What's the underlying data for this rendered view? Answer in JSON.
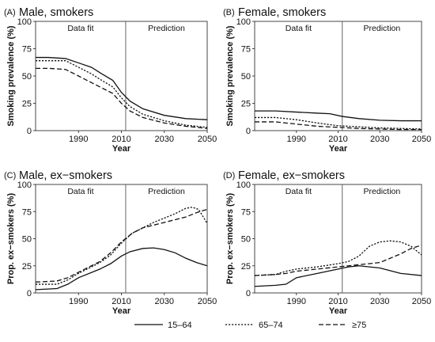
{
  "figure": {
    "legend": [
      {
        "label": "15–64",
        "dash": "solid"
      },
      {
        "label": "65–74",
        "dash": "dotted"
      },
      {
        "label": "≥75",
        "dash": "dashed"
      }
    ]
  },
  "chart_data": [
    {
      "type": "line",
      "panel": "(A)",
      "title": "Male, smokers",
      "xlabel": "Year",
      "ylabel": "Smoking prevalence (%)",
      "xlim": [
        1970,
        2050
      ],
      "ylim": [
        0,
        100
      ],
      "xticks": [
        1990,
        2010,
        2030,
        2050
      ],
      "yticks": [
        0,
        25,
        50,
        75,
        100
      ],
      "divider_year": 2012,
      "region_labels": [
        "Data fit",
        "Prediction"
      ],
      "grid": false,
      "series": [
        {
          "name": "15–64",
          "dash": "solid",
          "points": [
            [
              1970,
              67
            ],
            [
              1976,
              67
            ],
            [
              1984,
              66
            ],
            [
              1990,
              62
            ],
            [
              1996,
              58
            ],
            [
              2000,
              53
            ],
            [
              2006,
              46
            ],
            [
              2010,
              35
            ],
            [
              2014,
              27
            ],
            [
              2020,
              20
            ],
            [
              2030,
              14
            ],
            [
              2040,
              11
            ],
            [
              2050,
              10
            ]
          ]
        },
        {
          "name": "65–74",
          "dash": "dotted",
          "points": [
            [
              1970,
              64
            ],
            [
              1976,
              64
            ],
            [
              1984,
              64
            ],
            [
              1990,
              58
            ],
            [
              1996,
              52
            ],
            [
              2000,
              47
            ],
            [
              2006,
              40
            ],
            [
              2010,
              30
            ],
            [
              2014,
              22
            ],
            [
              2020,
              15
            ],
            [
              2030,
              9
            ],
            [
              2040,
              5
            ],
            [
              2050,
              3
            ]
          ]
        },
        {
          "name": "≥75",
          "dash": "dashed",
          "points": [
            [
              1970,
              57
            ],
            [
              1976,
              57
            ],
            [
              1984,
              56
            ],
            [
              1990,
              50
            ],
            [
              1996,
              44
            ],
            [
              2000,
              40
            ],
            [
              2006,
              34
            ],
            [
              2010,
              25
            ],
            [
              2014,
              18
            ],
            [
              2020,
              12
            ],
            [
              2030,
              7
            ],
            [
              2040,
              4
            ],
            [
              2050,
              2
            ]
          ]
        }
      ]
    },
    {
      "type": "line",
      "panel": "(B)",
      "title": "Female, smokers",
      "xlabel": "Year",
      "ylabel": "Smoking prevalence (%)",
      "xlim": [
        1970,
        2050
      ],
      "ylim": [
        0,
        100
      ],
      "xticks": [
        1990,
        2010,
        2030,
        2050
      ],
      "yticks": [
        0,
        25,
        50,
        75,
        100
      ],
      "divider_year": 2012,
      "region_labels": [
        "Data fit",
        "Prediction"
      ],
      "grid": false,
      "series": [
        {
          "name": "15–64",
          "dash": "solid",
          "points": [
            [
              1970,
              18
            ],
            [
              1980,
              18
            ],
            [
              1990,
              17
            ],
            [
              2000,
              16
            ],
            [
              2006,
              15.5
            ],
            [
              2012,
              13
            ],
            [
              2020,
              11
            ],
            [
              2030,
              9.5
            ],
            [
              2040,
              9
            ],
            [
              2050,
              9
            ]
          ]
        },
        {
          "name": "65–74",
          "dash": "dotted",
          "points": [
            [
              1970,
              12
            ],
            [
              1980,
              12
            ],
            [
              1990,
              10
            ],
            [
              2000,
              7
            ],
            [
              2010,
              4.5
            ],
            [
              2020,
              3.5
            ],
            [
              2030,
              2.5
            ],
            [
              2040,
              2
            ],
            [
              2050,
              1.5
            ]
          ]
        },
        {
          "name": "≥75",
          "dash": "dashed",
          "points": [
            [
              1970,
              8
            ],
            [
              1980,
              8
            ],
            [
              1990,
              6
            ],
            [
              2000,
              4
            ],
            [
              2010,
              3
            ],
            [
              2020,
              2
            ],
            [
              2030,
              1.5
            ],
            [
              2040,
              1
            ],
            [
              2050,
              1
            ]
          ]
        }
      ]
    },
    {
      "type": "line",
      "panel": "(C)",
      "title": "Male, ex−smokers",
      "xlabel": "Year",
      "ylabel": "Prop. ex−smokers (%)",
      "xlim": [
        1970,
        2050
      ],
      "ylim": [
        0,
        100
      ],
      "xticks": [
        1990,
        2010,
        2030,
        2050
      ],
      "yticks": [
        0,
        25,
        50,
        75,
        100
      ],
      "divider_year": 2012,
      "region_labels": [
        "Data fit",
        "Prediction"
      ],
      "grid": false,
      "series": [
        {
          "name": "15–64",
          "dash": "solid",
          "points": [
            [
              1970,
              3
            ],
            [
              1980,
              4
            ],
            [
              1985,
              8
            ],
            [
              1990,
              14
            ],
            [
              2000,
              22
            ],
            [
              2005,
              27
            ],
            [
              2010,
              34
            ],
            [
              2014,
              38
            ],
            [
              2020,
              41
            ],
            [
              2025,
              41.5
            ],
            [
              2030,
              40
            ],
            [
              2035,
              37
            ],
            [
              2040,
              32
            ],
            [
              2045,
              28
            ],
            [
              2050,
              25
            ]
          ]
        },
        {
          "name": "65–74",
          "dash": "dotted",
          "points": [
            [
              1970,
              8
            ],
            [
              1980,
              8
            ],
            [
              1985,
              12
            ],
            [
              1990,
              18
            ],
            [
              2000,
              28
            ],
            [
              2005,
              35
            ],
            [
              2010,
              46
            ],
            [
              2015,
              55
            ],
            [
              2020,
              60
            ],
            [
              2025,
              65
            ],
            [
              2030,
              69
            ],
            [
              2035,
              73
            ],
            [
              2040,
              78
            ],
            [
              2043,
              79
            ],
            [
              2046,
              77
            ],
            [
              2050,
              64
            ]
          ]
        },
        {
          "name": "≥75",
          "dash": "dashed",
          "points": [
            [
              1970,
              10
            ],
            [
              1980,
              11
            ],
            [
              1985,
              14
            ],
            [
              1990,
              19
            ],
            [
              2000,
              29
            ],
            [
              2005,
              37
            ],
            [
              2010,
              47
            ],
            [
              2015,
              55
            ],
            [
              2020,
              60
            ],
            [
              2030,
              65
            ],
            [
              2040,
              70
            ],
            [
              2045,
              74
            ],
            [
              2050,
              77
            ]
          ]
        }
      ]
    },
    {
      "type": "line",
      "panel": "(D)",
      "title": "Female, ex−smokers",
      "xlabel": "Year",
      "ylabel": "Prop. ex−smokers (%)",
      "xlim": [
        1970,
        2050
      ],
      "ylim": [
        0,
        100
      ],
      "xticks": [
        1990,
        2010,
        2030,
        2050
      ],
      "yticks": [
        0,
        25,
        50,
        75,
        100
      ],
      "divider_year": 2012,
      "region_labels": [
        "Data fit",
        "Prediction"
      ],
      "grid": false,
      "series": [
        {
          "name": "15–64",
          "dash": "solid",
          "points": [
            [
              1970,
              6
            ],
            [
              1980,
              7
            ],
            [
              1985,
              8
            ],
            [
              1990,
              14
            ],
            [
              2000,
              18
            ],
            [
              2010,
              22
            ],
            [
              2015,
              24
            ],
            [
              2020,
              25
            ],
            [
              2030,
              23
            ],
            [
              2040,
              18
            ],
            [
              2050,
              16
            ]
          ]
        },
        {
          "name": "65–74",
          "dash": "dotted",
          "points": [
            [
              1970,
              16
            ],
            [
              1980,
              17
            ],
            [
              1985,
              20
            ],
            [
              1990,
              22
            ],
            [
              2000,
              24
            ],
            [
              2010,
              27
            ],
            [
              2015,
              29
            ],
            [
              2020,
              34
            ],
            [
              2025,
              43
            ],
            [
              2030,
              47
            ],
            [
              2035,
              48
            ],
            [
              2040,
              47
            ],
            [
              2045,
              43
            ],
            [
              2050,
              35
            ]
          ]
        },
        {
          "name": "≥75",
          "dash": "dashed",
          "points": [
            [
              1970,
              16
            ],
            [
              1980,
              17
            ],
            [
              1985,
              18
            ],
            [
              1990,
              20
            ],
            [
              2000,
              22
            ],
            [
              2010,
              24
            ],
            [
              2020,
              26
            ],
            [
              2030,
              28
            ],
            [
              2040,
              36
            ],
            [
              2045,
              41
            ],
            [
              2050,
              44
            ]
          ]
        }
      ]
    }
  ]
}
